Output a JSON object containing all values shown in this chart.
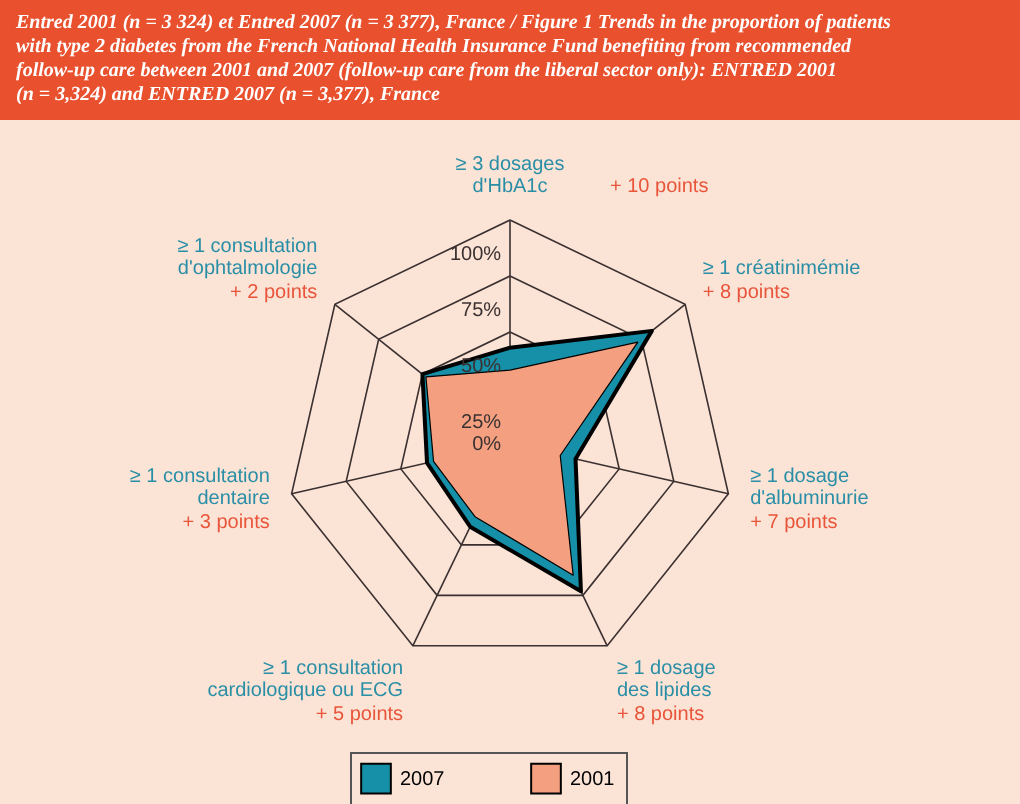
{
  "chart_data": {
    "type": "radar",
    "title": "Entred 2001 (n = 3 324) et Entred 2007 (n = 3 377), France / Figure 1 Trends in the proportion of patients\nwith type 2 diabetes from the French National Health Insurance Fund benefiting from recommended\nfollow-up care between 2001 and 2007 (follow-up care from the liberal sector only): ENTRED 2001\n(n = 3,324) and ENTRED 2007 (n = 3,377), France",
    "categories": [
      "≥ 3 dosages\nd'HbA1c",
      "≥ 1 créatinimémie",
      "≥ 1 dosage\nd'albuminurie",
      "≥ 1 dosage\ndes lipides",
      "≥ 1 consultation\ncardiologique ou ECG",
      "≥ 1 consultation\ndentaire",
      "≥ 1 consultation\nd'ophtalmologie"
    ],
    "annotations": [
      "+ 10 points",
      "+ 8 points",
      "+ 7 points",
      "+ 8 points",
      "+ 5 points",
      "+ 3 points",
      "+ 2 points"
    ],
    "series": [
      {
        "name": "2007",
        "color": "#1590a8",
        "values": [
          43,
          81,
          30,
          73,
          41,
          38,
          50
        ]
      },
      {
        "name": "2001",
        "color": "#f4a080",
        "values": [
          33,
          73,
          23,
          65,
          36,
          35,
          48
        ]
      }
    ],
    "ylim": [
      0,
      100
    ],
    "yticks": [
      {
        "value": 0,
        "label": "0%"
      },
      {
        "value": 25,
        "label": "25%"
      },
      {
        "value": 50,
        "label": "50%"
      },
      {
        "value": 75,
        "label": "75%"
      },
      {
        "value": 100,
        "label": "100%"
      }
    ],
    "grid": true,
    "legend": "bottom",
    "marker": "none"
  }
}
